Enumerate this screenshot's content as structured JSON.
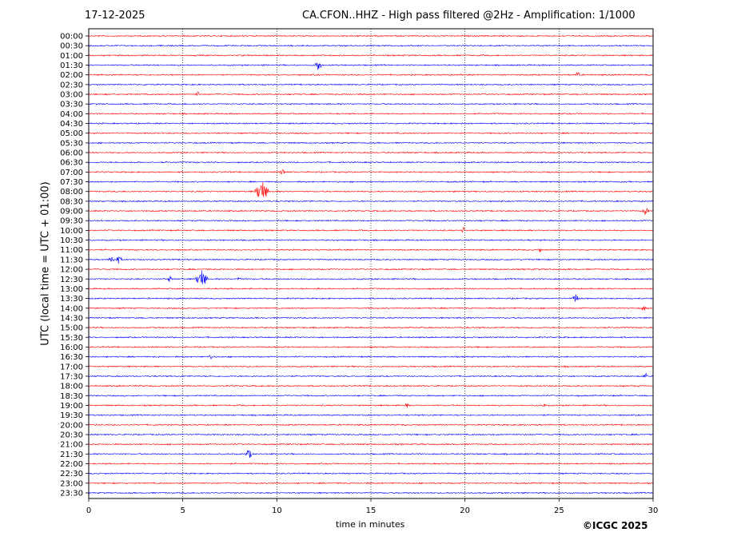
{
  "header": {
    "date": "17-12-2025",
    "title": "CA.CFON..HHZ - High pass filtered @2Hz - Amplification: 1/1000"
  },
  "footer": {
    "copyright": "©ICGC 2025"
  },
  "chart_data": {
    "type": "line",
    "title": "CA.CFON..HHZ - High pass filtered @2Hz - Amplification: 1/1000",
    "xlabel": "time in minutes",
    "ylabel": "UTC (local time = UTC + 01:00)",
    "xlim": [
      0,
      30
    ],
    "xticks": [
      0,
      5,
      10,
      15,
      20,
      25,
      30
    ],
    "grid": "vertical dotted at x = 5, 10, 15, 20, 25",
    "trace_colors": [
      "#ff0000",
      "#0000ff"
    ],
    "rows": [
      "00:00",
      "00:30",
      "01:00",
      "01:30",
      "02:00",
      "02:30",
      "03:00",
      "03:30",
      "04:00",
      "04:30",
      "05:00",
      "05:30",
      "06:00",
      "06:30",
      "07:00",
      "07:30",
      "08:00",
      "08:30",
      "09:00",
      "09:30",
      "10:00",
      "10:30",
      "11:00",
      "11:30",
      "12:00",
      "12:30",
      "13:00",
      "13:30",
      "14:00",
      "14:30",
      "15:00",
      "15:30",
      "16:00",
      "16:30",
      "17:00",
      "17:30",
      "18:00",
      "18:30",
      "19:00",
      "19:30",
      "20:00",
      "20:30",
      "21:00",
      "21:30",
      "22:00",
      "22:30",
      "23:00",
      "23:30"
    ],
    "events": [
      {
        "row": "01:30",
        "minute": 12.2,
        "amplitude": 0.5
      },
      {
        "row": "02:00",
        "minute": 26.0,
        "amplitude": 0.25
      },
      {
        "row": "03:00",
        "minute": 5.8,
        "amplitude": 0.2
      },
      {
        "row": "07:00",
        "minute": 10.3,
        "amplitude": 0.3
      },
      {
        "row": "08:00",
        "minute": 9.2,
        "amplitude": 1.0
      },
      {
        "row": "09:00",
        "minute": 29.6,
        "amplitude": 0.35
      },
      {
        "row": "10:00",
        "minute": 19.9,
        "amplitude": 0.25
      },
      {
        "row": "11:00",
        "minute": 24.0,
        "amplitude": 0.2
      },
      {
        "row": "11:30",
        "minute": 1.2,
        "amplitude": 0.35
      },
      {
        "row": "11:30",
        "minute": 1.6,
        "amplitude": 0.35
      },
      {
        "row": "12:30",
        "minute": 6.0,
        "amplitude": 0.85
      },
      {
        "row": "12:30",
        "minute": 4.3,
        "amplitude": 0.25
      },
      {
        "row": "12:30",
        "minute": 8.0,
        "amplitude": 0.2
      },
      {
        "row": "13:00",
        "minute": 12.2,
        "amplitude": 0.15
      },
      {
        "row": "13:30",
        "minute": 25.9,
        "amplitude": 0.4
      },
      {
        "row": "14:00",
        "minute": 29.5,
        "amplitude": 0.25
      },
      {
        "row": "16:30",
        "minute": 6.5,
        "amplitude": 0.25
      },
      {
        "row": "17:30",
        "minute": 29.6,
        "amplitude": 0.25
      },
      {
        "row": "19:00",
        "minute": 16.9,
        "amplitude": 0.2
      },
      {
        "row": "19:00",
        "minute": 24.2,
        "amplitude": 0.15
      },
      {
        "row": "21:30",
        "minute": 8.5,
        "amplitude": 0.45
      }
    ]
  }
}
